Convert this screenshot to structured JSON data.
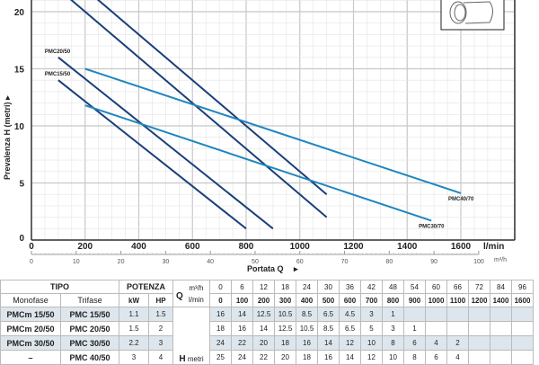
{
  "chart_data": {
    "type": "line",
    "xlabel": "Portata Q",
    "ylabel": "Prevalenza H (metri)",
    "x_unit": "l/min",
    "x2_unit": "m³/h",
    "xlim": [
      0,
      1800
    ],
    "ylim": [
      0,
      21
    ],
    "x_ticks": [
      0,
      200,
      400,
      600,
      800,
      1000,
      1200,
      1400,
      1600
    ],
    "y_ticks": [
      0,
      5,
      10,
      15,
      20
    ],
    "x2_ticks": [
      0,
      10,
      20,
      30,
      40,
      50,
      60,
      70,
      80,
      90,
      100
    ],
    "grid": true,
    "series": [
      {
        "name": "PMC15/50",
        "color": "#1a3f7a",
        "points": [
          [
            100,
            14
          ],
          [
            800,
            1
          ]
        ],
        "label": "PMC15/50"
      },
      {
        "name": "PMC20/50",
        "color": "#1a3f7a",
        "points": [
          [
            100,
            16
          ],
          [
            900,
            1
          ]
        ],
        "label": "PMC20/50"
      },
      {
        "name": "PMC30/50",
        "color": "#1a3f7a",
        "points": [
          [
            100,
            22
          ],
          [
            1100,
            2
          ]
        ],
        "label": ""
      },
      {
        "name": "PMC40/50",
        "color": "#1a3f7a",
        "points": [
          [
            200,
            22
          ],
          [
            1100,
            4
          ]
        ],
        "label": ""
      },
      {
        "name": "PMC30/70",
        "color": "#1f86bf",
        "points": [
          [
            200,
            11.8
          ],
          [
            1490,
            1.7
          ]
        ],
        "label": "PMC30/70"
      },
      {
        "name": "PMC40/70",
        "color": "#1f86bf",
        "points": [
          [
            200,
            15
          ],
          [
            1600,
            4.1
          ]
        ],
        "label": "PMC40/70"
      }
    ]
  },
  "table": {
    "tipo": "TIPO",
    "potenza": "POTENZA",
    "monofase": "Monofase",
    "trifase": "Trifase",
    "kw": "kW",
    "hp": "HP",
    "q": "Q",
    "q_m3h": "m³/h",
    "q_lmin": "l/min",
    "h": "H",
    "h_unit": "metri",
    "m3h": [
      "0",
      "6",
      "12",
      "18",
      "24",
      "30",
      "36",
      "42",
      "48",
      "54",
      "60",
      "66",
      "72",
      "84",
      "96"
    ],
    "lmin": [
      "0",
      "100",
      "200",
      "300",
      "400",
      "500",
      "600",
      "700",
      "800",
      "900",
      "1000",
      "1100",
      "1200",
      "1400",
      "1600"
    ],
    "rows": [
      {
        "mono": "PMCm 15/50",
        "tri": "PMC 15/50",
        "kw": "1.1",
        "hp": "1.5",
        "h": [
          "16",
          "14",
          "12.5",
          "10.5",
          "8.5",
          "6.5",
          "4.5",
          "3",
          "1",
          "",
          "",
          "",
          "",
          "",
          ""
        ]
      },
      {
        "mono": "PMCm 20/50",
        "tri": "PMC 20/50",
        "kw": "1.5",
        "hp": "2",
        "h": [
          "18",
          "16",
          "14",
          "12.5",
          "10.5",
          "8.5",
          "6.5",
          "5",
          "3",
          "1",
          "",
          "",
          "",
          "",
          ""
        ]
      },
      {
        "mono": "PMCm 30/50",
        "tri": "PMC 30/50",
        "kw": "2.2",
        "hp": "3",
        "h": [
          "24",
          "22",
          "20",
          "18",
          "16",
          "14",
          "12",
          "10",
          "8",
          "6",
          "4",
          "2",
          "",
          "",
          ""
        ]
      },
      {
        "mono": "–",
        "tri": "PMC 40/50",
        "kw": "3",
        "hp": "4",
        "h": [
          "25",
          "24",
          "22",
          "20",
          "18",
          "16",
          "14",
          "12",
          "10",
          "8",
          "6",
          "4",
          "",
          "",
          ""
        ]
      }
    ]
  }
}
